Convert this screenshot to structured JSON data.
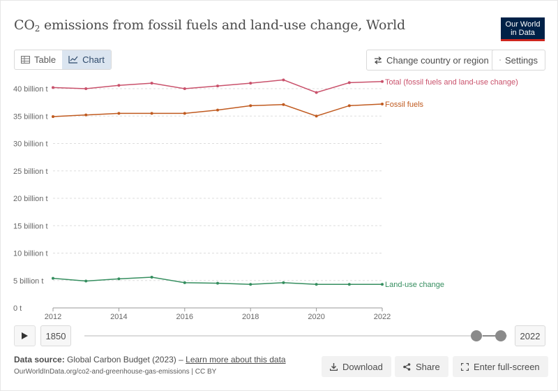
{
  "header": {
    "title_prefix": "CO",
    "title_sub": "2",
    "title_suffix": " emissions from fossil fuels and land-use change, World",
    "logo_line1": "Our World",
    "logo_line2": "in Data"
  },
  "tabs": {
    "table_label": "Table",
    "chart_label": "Chart"
  },
  "controls": {
    "change_country_label": "Change country or region",
    "settings_label": "Settings"
  },
  "chart_data": {
    "type": "line",
    "title": "CO2 emissions from fossil fuels and land-use change, World",
    "xlabel": "",
    "ylabel": "",
    "x": [
      2012,
      2013,
      2014,
      2015,
      2016,
      2017,
      2018,
      2019,
      2020,
      2021,
      2022
    ],
    "xticks": [
      2012,
      2014,
      2016,
      2018,
      2020,
      2022
    ],
    "ylim": [
      0,
      40
    ],
    "yticks": [
      {
        "value": 0,
        "label": "0 t"
      },
      {
        "value": 5,
        "label": "5 billion t"
      },
      {
        "value": 10,
        "label": "10 billion t"
      },
      {
        "value": 15,
        "label": "15 billion t"
      },
      {
        "value": 20,
        "label": "20 billion t"
      },
      {
        "value": 25,
        "label": "25 billion t"
      },
      {
        "value": 30,
        "label": "30 billion t"
      },
      {
        "value": 35,
        "label": "35 billion t"
      },
      {
        "value": 40,
        "label": "40 billion t"
      }
    ],
    "series": [
      {
        "name": "Total (fossil fuels and land-use change)",
        "color": "#c9516b",
        "values": [
          40.2,
          40.0,
          40.6,
          41.0,
          40.0,
          40.5,
          41.0,
          41.6,
          39.3,
          41.1,
          41.3
        ]
      },
      {
        "name": "Fossil fuels",
        "color": "#c05a1f",
        "values": [
          34.9,
          35.2,
          35.5,
          35.5,
          35.5,
          36.1,
          36.9,
          37.1,
          35.0,
          36.9,
          37.2
        ]
      },
      {
        "name": "Land-use change",
        "color": "#358e5f",
        "values": [
          5.4,
          4.9,
          5.3,
          5.6,
          4.6,
          4.5,
          4.3,
          4.6,
          4.3,
          4.3,
          4.3
        ]
      }
    ]
  },
  "timeline": {
    "start_year": "1850",
    "end_year": "2022",
    "range_start_fraction": 0.962,
    "range_end_fraction": 1.0
  },
  "footer": {
    "source_label": "Data source:",
    "source_text": " Global Carbon Budget (2023) – ",
    "learn_more": "Learn more about this data",
    "url": "OurWorldInData.org/co2-and-greenhouse-gas-emissions | CC BY",
    "download_label": "Download",
    "share_label": "Share",
    "fullscreen_label": "Enter full-screen"
  }
}
